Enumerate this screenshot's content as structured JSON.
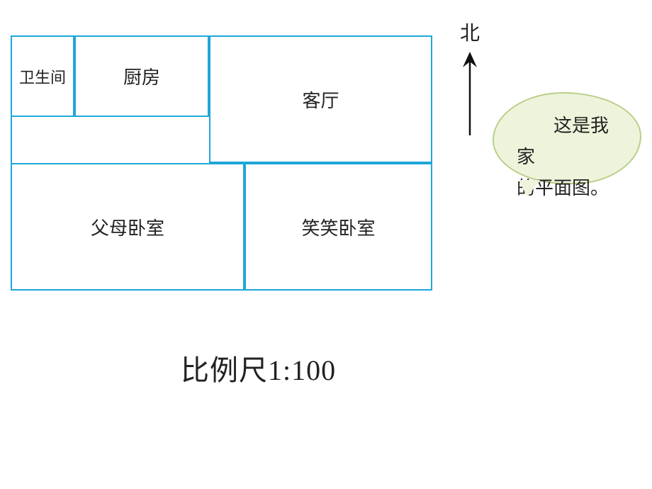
{
  "colors": {
    "border": "#1fa7d8",
    "text": "#222222",
    "bubble_fill": "#eef4db",
    "bubble_border": "#b9cf8a",
    "arrow": "#111111",
    "background": "#ffffff"
  },
  "floorplan": {
    "bathroom": {
      "label": "卫生间",
      "fontsize": 22
    },
    "kitchen": {
      "label": "厨房",
      "fontsize": 26
    },
    "living": {
      "label": "客厅",
      "fontsize": 26
    },
    "parents": {
      "label": "父母卧室",
      "fontsize": 26
    },
    "child": {
      "label": "笑笑卧室",
      "fontsize": 26
    }
  },
  "compass": {
    "label": "北",
    "fontsize": 28,
    "arrow_length": 110
  },
  "bubble": {
    "line1": "这是我家",
    "line2": "的平面图。",
    "fontsize": 26
  },
  "scale": {
    "text": "比例尺1:100",
    "fontsize": 40
  }
}
